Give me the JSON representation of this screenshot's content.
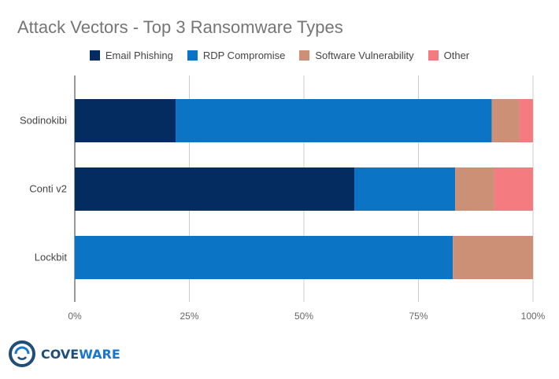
{
  "chart_data": {
    "type": "bar",
    "orientation": "horizontal",
    "stacked": true,
    "title": "Attack Vectors - Top 3 Ransomware Types",
    "categories": [
      "Sodinokibi",
      "Conti v2",
      "Lockbit"
    ],
    "series": [
      {
        "name": "Email Phishing",
        "color": "#042c60",
        "values": [
          22,
          61,
          0
        ]
      },
      {
        "name": "RDP Compromise",
        "color": "#0c74c4",
        "values": [
          69,
          22,
          82.5
        ]
      },
      {
        "name": "Software Vulnerability",
        "color": "#cc9076",
        "values": [
          6,
          8.5,
          17.5
        ]
      },
      {
        "name": "Other",
        "color": "#f47b80",
        "values": [
          3,
          8.5,
          0
        ]
      }
    ],
    "xlim": [
      0,
      100
    ],
    "x_ticks": [
      "0%",
      "25%",
      "50%",
      "75%",
      "100%"
    ],
    "x_tick_values": [
      0,
      25,
      50,
      75,
      100
    ],
    "grid": true,
    "legend_position": "top"
  },
  "logo": {
    "name_part1": "COVE",
    "name_part2": "WARE",
    "icon": "coveware-ring-icon",
    "colors": {
      "ring": "#1f4e79",
      "ring_inner": "#1976d2"
    }
  }
}
